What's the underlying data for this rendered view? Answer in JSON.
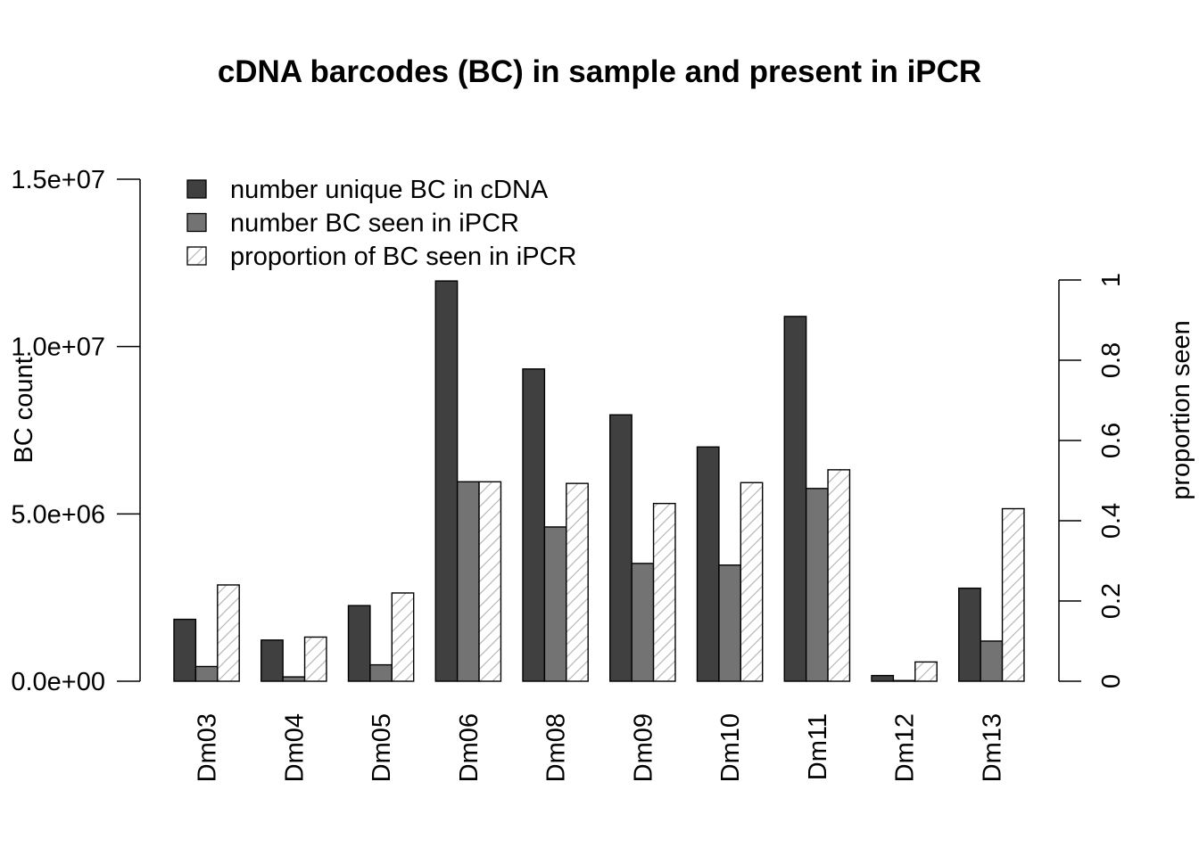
{
  "chart_data": {
    "type": "bar",
    "title": "cDNA barcodes (BC) in sample and present in iPCR",
    "ylabel": "BC count",
    "ylabel_right": "proportion seen",
    "categories": [
      "Dm03",
      "Dm04",
      "Dm05",
      "Dm06",
      "Dm08",
      "Dm09",
      "Dm10",
      "Dm11",
      "Dm12",
      "Dm13"
    ],
    "series": [
      {
        "name": "number unique BC in cDNA",
        "axis": "left",
        "color": "#404040",
        "pattern": "solid",
        "values": [
          1850000,
          1230000,
          2260000,
          11960000,
          9330000,
          7960000,
          7000000,
          10900000,
          170000,
          2780000
        ]
      },
      {
        "name": "number BC seen in iPCR",
        "axis": "left",
        "color": "#737373",
        "pattern": "solid",
        "values": [
          440000,
          130000,
          490000,
          5960000,
          4610000,
          3520000,
          3470000,
          5760000,
          20000,
          1200000
        ]
      },
      {
        "name": "proportion of BC seen in iPCR",
        "axis": "right",
        "color": "#ffffff",
        "pattern": "hatch",
        "values": [
          0.24,
          0.11,
          0.22,
          0.497,
          0.493,
          0.443,
          0.495,
          0.527,
          0.048,
          0.43
        ]
      }
    ],
    "ylim": [
      0,
      15000000
    ],
    "yticks": [
      0,
      5000000,
      10000000,
      15000000
    ],
    "ytick_labels": [
      "0.0e+00",
      "5.0e+06",
      "1.0e+07",
      "1.5e+07"
    ],
    "ylim_right": [
      0,
      1
    ],
    "yticks_right": [
      0,
      0.2,
      0.4,
      0.6,
      0.8,
      1
    ],
    "ytick_labels_right": [
      "0",
      "0.2",
      "0.4",
      "0.6",
      "0.8",
      "1"
    ],
    "legend_position": "top-left",
    "grid": false
  }
}
